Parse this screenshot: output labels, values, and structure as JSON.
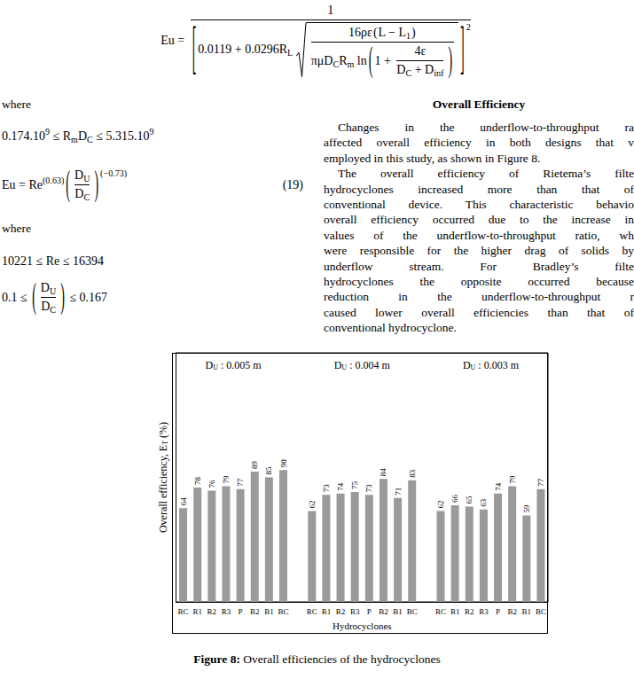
{
  "equation_top": [
    "Eu = ",
    {
      "frac": [
        "1",
        [
          {
            "paren": [
              "0.0119 + 0.0296R",
              {
                "sub": "L"
              },
              " ",
              {
                "sqrt": {
                  "frac": [
                    [
                      "16ρε",
                      {
                        "paren": [
                          "L − L",
                          {
                            "sub": "1"
                          }
                        ],
                        "open": "(",
                        "close": ")"
                      }
                    ],
                    [
                      "πμD",
                      {
                        "sub": "C"
                      },
                      "R",
                      {
                        "sub": "m"
                      },
                      " ln",
                      {
                        "paren": [
                          "1 + ",
                          {
                            "frac": [
                              "4ε",
                              [
                                "D",
                                {
                                  "sub": "C"
                                },
                                " + D",
                                {
                                  "sub": "inf"
                                }
                              ]
                            ]
                          }
                        ],
                        "open": "(",
                        "close": ")"
                      }
                    ]
                  ]
                }
              }
            ],
            "open": "[",
            "close": "]"
          },
          {
            "sup": "2"
          }
        ]
      ]
    }
  ],
  "where_1": "where",
  "equation_range_1": [
    "0.174.10",
    {
      "sup": "9"
    },
    " ≤ R",
    {
      "sub": "m"
    },
    "D",
    {
      "sub": "C"
    },
    " ≤ 5.315.10",
    {
      "sup": "9"
    }
  ],
  "equation_19": {
    "expr": [
      "Eu = Re",
      {
        "sup": "(0.63)"
      },
      {
        "paren": [
          {
            "frac": [
              [
                "D",
                {
                  "sub": "U"
                }
              ],
              [
                "D",
                {
                  "sub": "C"
                }
              ]
            ]
          }
        ],
        "open": "(",
        "close": ")"
      },
      {
        "sup": "(−0.73)"
      }
    ],
    "number": "(19)"
  },
  "where_2": "where",
  "equation_range_2": [
    "10221 ≤ Re ≤ 16394"
  ],
  "equation_range_3": [
    "0.1 ≤ ",
    {
      "paren": [
        {
          "frac": [
            [
              "D",
              {
                "sub": "U"
              }
            ],
            [
              "D",
              {
                "sub": "C"
              }
            ]
          ]
        }
      ],
      "open": "(",
      "close": ")"
    },
    " ≤ 0.167"
  ],
  "section_heading": "Overall Efficiency",
  "paragraphs": [
    [
      "Changes in the underflow-to-throughput ra",
      "affected overall efficiency in both designs that v",
      "employed in this study, as shown in Figure 8."
    ],
    [
      "The overall efficiency of Rietema’s filte",
      "hydrocyclones increased more than that of",
      "conventional device. This characteristic behavio",
      "overall efficiency occurred due to the increase in",
      "values of the underflow-to-throughput ratio, wh",
      "were responsible for the higher drag of solids by",
      "underflow stream. For Bradley’s filte",
      "hydrocyclones the opposite occurred because",
      "reduction in the underflow-to-throughput r",
      "caused lower overall efficiencies than that of",
      "conventional hydrocyclone."
    ]
  ],
  "chart_data": {
    "type": "bar",
    "x_label": "Hydrocyclones",
    "y_label": [
      {
        "text": "Overall efficiency, E"
      },
      {
        "text": "T",
        "sub": true
      },
      {
        "text": " (%)"
      }
    ],
    "group_labels": [
      [
        {
          "text": "D"
        },
        {
          "text": "U",
          "sub": true
        },
        {
          "text": " : 0.005 m"
        }
      ],
      [
        {
          "text": "D"
        },
        {
          "text": "U",
          "sub": true
        },
        {
          "text": " : 0.004 m"
        }
      ],
      [
        {
          "text": "D"
        },
        {
          "text": "U",
          "sub": true
        },
        {
          "text": " : 0.003 m"
        }
      ]
    ],
    "categories": [
      "RC",
      "R1",
      "R2",
      "R3",
      "P",
      "B2",
      "B1",
      "BC",
      null,
      "RC",
      "R1",
      "R2",
      "R3",
      "P",
      "B2",
      "B1",
      "BC",
      null,
      "RC",
      "R1",
      "R2",
      "R3",
      "P",
      "B2",
      "B1",
      "BC"
    ],
    "values": [
      64,
      78,
      76,
      79,
      77,
      89,
      85,
      90,
      null,
      62,
      73,
      74,
      75,
      73,
      84,
      71,
      83,
      null,
      62,
      66,
      65,
      63,
      74,
      79,
      59,
      77
    ],
    "color": "#9a9a9a",
    "ylim": [
      0,
      170
    ],
    "yticks": [],
    "grid": false,
    "data_labels": true,
    "tick_labels": "x"
  },
  "figure_caption": {
    "label": "Figure 8:",
    "text": " Overall efficiencies of the hydrocyclones"
  }
}
